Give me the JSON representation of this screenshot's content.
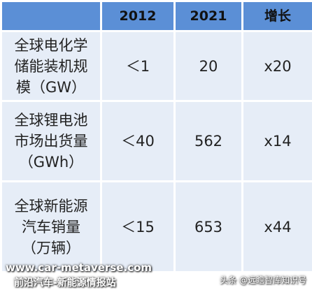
{
  "table": {
    "header": [
      "",
      "2012",
      "2021",
      "增长"
    ],
    "rows": [
      [
        "全球电化学储能装机规模（GW）",
        "＜1",
        "20",
        "x20"
      ],
      [
        "全球锂电池市场出货量（GWh）",
        "＜40",
        "562",
        "x14"
      ],
      [
        "全球新能源汽车销量（万辆）",
        "＜15",
        "653",
        "x44"
      ]
    ]
  },
  "watermark": {
    "site": "www.car-metaverse.com",
    "name": "前沿汽车-新能源情报站",
    "source": "头条 @远瞻智库知识号"
  }
}
